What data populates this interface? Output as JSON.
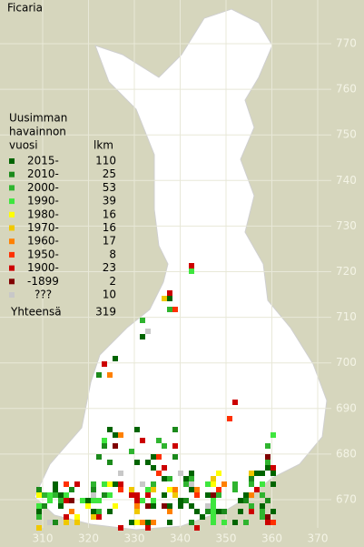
{
  "title": "Ficaria",
  "legend": {
    "heading": [
      "Uusimman",
      "havainnon",
      "vuosi"
    ],
    "count_heading": "lkm",
    "items": [
      {
        "label": "2015-",
        "count": 110,
        "color": "#006400"
      },
      {
        "label": "2010-",
        "count": 25,
        "color": "#1b8a1b"
      },
      {
        "label": "2000-",
        "count": 53,
        "color": "#2fb42f"
      },
      {
        "label": "1990-",
        "count": 39,
        "color": "#3ee63e"
      },
      {
        "label": "1980-",
        "count": 16,
        "color": "#ffff00"
      },
      {
        "label": "1970-",
        "count": 16,
        "color": "#f0c800"
      },
      {
        "label": "1960-",
        "count": 17,
        "color": "#ff8000"
      },
      {
        "label": "1950-",
        "count": 8,
        "color": "#ff3000"
      },
      {
        "label": "1900-",
        "count": 23,
        "color": "#cc0000"
      },
      {
        "label": "-1899",
        "count": 2,
        "color": "#800000"
      },
      {
        "label": "???",
        "count": 10,
        "color": "#c8c8c8"
      }
    ],
    "total_label": "Yhteensä",
    "total": 319
  },
  "grid": {
    "y_labels": [
      770,
      760,
      750,
      740,
      730,
      720,
      710,
      700,
      690,
      680,
      670
    ],
    "x_labels": [
      310,
      320,
      330,
      340,
      350,
      360,
      370
    ]
  }
}
